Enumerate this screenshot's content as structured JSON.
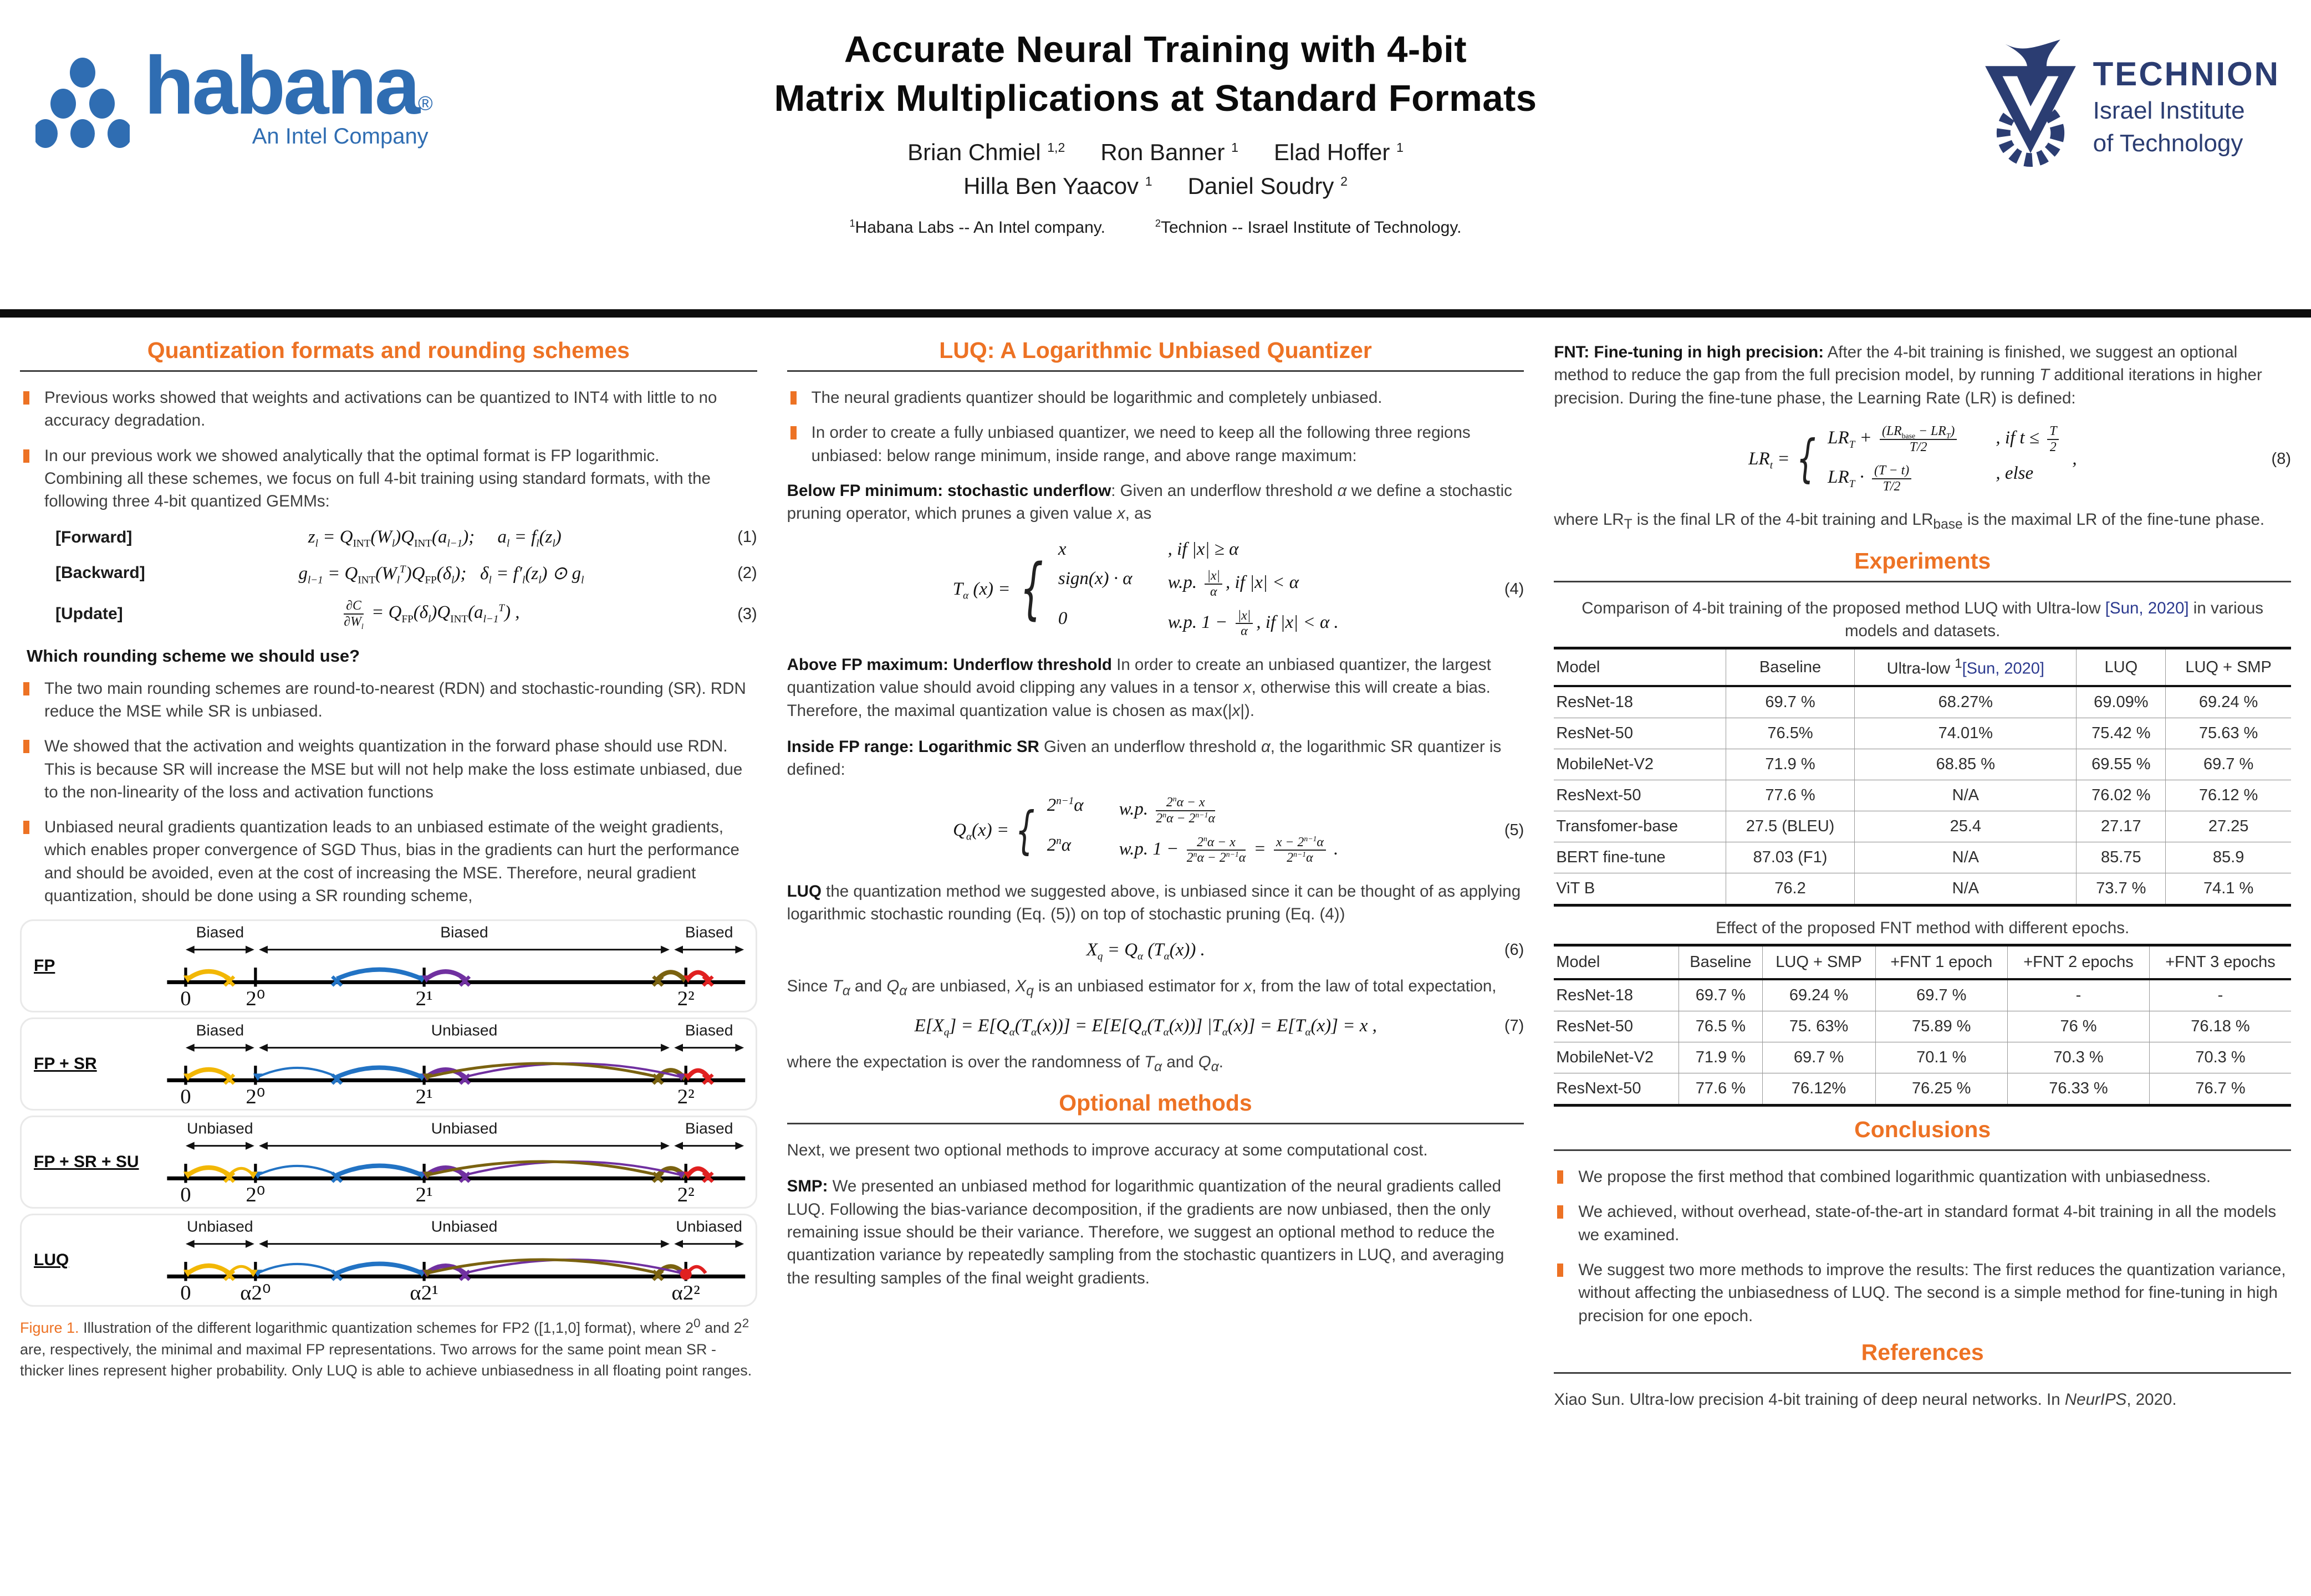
{
  "accent_colors": {
    "orange": "#ED7224",
    "cite_blue": "#2c3a8f",
    "habana_blue": "#2F6DB2",
    "technion_navy": "#2b3d72"
  },
  "header": {
    "title_line1": "Accurate Neural Training with 4-bit",
    "title_line2": "Matrix Multiplications at Standard Formats",
    "authors_line1_html": "Brian Chmiel <sup>1,2</sup><span class=\"gap-mid\"></span>Ron Banner <sup>1</sup><span class=\"gap-mid\"></span>Elad Hoffer <sup>1</sup>",
    "authors_line2_html": "Hilla Ben Yaacov <sup>1</sup><span class=\"gap-mid\"></span>Daniel Soudry <sup>2</sup>",
    "affiliations_html": "<sup>1</sup>Habana Labs -- An Intel company.<span class=\"gap-wide\"></span><sup>2</sup>Technion -- Israel Institute of Technology.",
    "habana_logo": {
      "wordmark": "habana",
      "registered": "®",
      "tagline": "An Intel Company"
    },
    "technion_logo": {
      "name": "TECHNION",
      "line1": "Israel Institute",
      "line2": "of Technology"
    }
  },
  "col1": {
    "heading": "Quantization formats and rounding schemes",
    "bullet1": "Previous works showed that weights and activations can be quantized to INT4 with little to no accuracy degradation.",
    "bullet2a": "In our previous work we showed analytically that the optimal format is FP logarithmic.",
    "bullet2b": "Combining all these schemes, we focus on full 4-bit training using standard formats, with the following three 4-bit quantized GEMMs:",
    "eq1": {
      "tag": "[Forward]",
      "body_html": "z<sub>l</sub> = Q<sub class=\"rm\">INT</sub>(W<sub>l</sub>)Q<sub class=\"rm\">INT</sub>(a<sub>l−1</sub>); &nbsp;&nbsp;&nbsp; a<sub>l</sub> = f<sub>l</sub>(z<sub>l</sub>)",
      "num": "(1)"
    },
    "eq2": {
      "tag": "[Backward]",
      "body_html": "g<sub>l−1</sub> = Q<sub class=\"rm\">INT</sub>(W<sub>l</sub><sup>T</sup>)Q<sub class=\"rm\">FP</sub>(δ<sub>l</sub>); &nbsp; δ<sub>l</sub> = f′<sub>l</sub>(z<sub>l</sub>) ⊙ g<sub>l</sub>",
      "num": "(2)"
    },
    "eq3": {
      "tag": "[Update]",
      "body_html": "<span class=\"fr\"><span>∂C</span><span>∂W<sub>l</sub></span></span> = Q<sub class=\"rm\">FP</sub>(δ<sub>l</sub>)Q<sub class=\"rm\">INT</sub>(a<sub>l−1</sub><sup>T</sup>) ,",
      "num": "(3)"
    },
    "subheading": "Which rounding scheme we should use?",
    "bullet3": "The two main rounding schemes are round-to-nearest (RDN) and stochastic-rounding (SR). RDN reduce the MSE while SR is unbiased.",
    "bullet4": "We showed that the activation and weights quantization in the forward phase should use RDN. This is because SR will increase the MSE but will not help make the loss estimate unbiased, due to the non-linearity of the loss and activation functions",
    "bullet5": "Unbiased neural gradients quantization leads to an unbiased estimate of the weight gradients, which enables proper convergence of SGD Thus, bias in the gradients can hurt the performance and should be avoided, even at the cost of increasing the MSE. Therefore, neural gradient quantization, should be done using a SR rounding scheme,"
  },
  "figure1": {
    "panels": [
      {
        "label": "FP",
        "style": "fp",
        "regions": [
          "Biased",
          "Biased",
          "Biased"
        ],
        "ticks": [
          "0",
          "2⁰",
          "2¹",
          "2²"
        ]
      },
      {
        "label": "FP + SR",
        "style": "sr",
        "regions": [
          "Biased",
          "Unbiased",
          "Biased"
        ],
        "ticks": [
          "0",
          "2⁰",
          "2¹",
          "2²"
        ]
      },
      {
        "label": "FP + SR + SU",
        "style": "srsu",
        "regions": [
          "Unbiased",
          "Unbiased",
          "Biased"
        ],
        "ticks": [
          "0",
          "2⁰",
          "2¹",
          "2²"
        ]
      },
      {
        "label": "LUQ",
        "style": "luq",
        "regions": [
          "Unbiased",
          "Unbiased",
          "Unbiased"
        ],
        "ticks": [
          "0",
          "α2⁰",
          "α2¹",
          "α2²"
        ]
      }
    ],
    "caption_html": "<span class=\"figtag\">Figure 1.</span> Illustration of the different logarithmic quantization schemes for FP2 ([1,1,0] format), where 2<sup>0</sup> and 2<sup>2</sup> are, respectively, the minimal and maximal FP representations. Two arrows for the same point mean SR - thicker lines represent higher probability. Only LUQ is able to achieve unbiasedness in all floating point ranges."
  },
  "col2": {
    "heading": "LUQ: A Logarithmic Unbiased Quantizer",
    "bullet1": "The neural gradients quantizer should be logarithmic and completely unbiased.",
    "bullet2": "In order to create a fully unbiased quantizer, we need to keep all the following three regions unbiased: below range minimum, inside range, and above range maximum:",
    "p_below_html": "<b>Below FP minimum: stochastic underflow</b>:  Given an underflow threshold <i>α</i> we define a stochastic pruning operator, which prunes a given value <i>x</i>, as",
    "eq4": {
      "lhs_html": "T<sub>α</sub> (x) =",
      "rows": [
        [
          "x",
          ", if |x| ≥ α"
        ],
        [
          "sign(x) · α",
          "w.p. <span class=\"fr\"><span>|x|</span><span>α</span></span>, if |x| &lt; α"
        ],
        [
          "0",
          "w.p. 1 − <span class=\"fr\"><span>|x|</span><span>α</span></span>, if |x| &lt; α ."
        ]
      ],
      "num": "(4)"
    },
    "p_above_html": "<b>Above FP maximum: Underflow threshold</b> In order to create an unbiased quantizer, the largest quantization value should avoid clipping any values in a tensor <i>x</i>, otherwise this will create a bias. Therefore, the maximal quantization value is chosen as max(|<i>x</i>|).",
    "p_inside_html": "<b>Inside FP range: Logarithmic SR</b> Given an underflow threshold <i>α</i>, the logarithmic SR quantizer is defined:",
    "eq5": {
      "lhs_html": "Q<sub>α</sub>(x) =",
      "rows": [
        [
          "2<sup>n−1</sup>α",
          "w.p. <span class=\"fr\"><span>2<sup>n</sup>α − x</span><span>2<sup>n</sup>α − 2<sup>n−1</sup>α</span></span>"
        ],
        [
          "2<sup>n</sup>α",
          "w.p. 1 − <span class=\"fr\"><span>2<sup>n</sup>α − x</span><span>2<sup>n</sup>α − 2<sup>n−1</sup>α</span></span> = <span class=\"fr\"><span>x − 2<sup>n−1</sup>α</span><span>2<sup>n−1</sup>α</span></span> ."
        ]
      ],
      "num": "(5)"
    },
    "p_luq_html": "<b>LUQ</b> the quantization method we suggested above, is unbiased since it can be thought of as applying logarithmic stochastic rounding (Eq. (5)) on top of stochastic pruning (Eq. (4))",
    "eq6": {
      "body_html": "X<sub>q</sub> = Q<sub>α</sub> (T<sub>α</sub>(x)) .",
      "num": "(6)"
    },
    "p_since_html": "Since <i>T<sub>α</sub></i> and <i>Q<sub>α</sub></i> are unbiased, <i>X<sub>q</sub></i> is an unbiased estimator for <i>x</i>, from the law of total expectation,",
    "eq7": {
      "body_html": "E[X<sub>q</sub>] = E[Q<sub>α</sub>(T<sub>α</sub>(x))] = E[E[Q<sub>α</sub>(T<sub>α</sub>(x))] |T<sub>α</sub>(x)] = E[T<sub>α</sub>(x)] = x ,",
      "num": "(7)"
    },
    "p_where_html": "where the expectation is over the randomness of <i>T<sub>α</sub></i> and <i>Q<sub>α</sub></i>.",
    "heading2": "Optional methods",
    "p_next": "Next, we present two optional methods to improve accuracy at some computational cost.",
    "p_smp_html": "<b>SMP:</b> We presented an unbiased method for logarithmic quantization of the neural gradients called LUQ. Following the bias-variance decomposition, if the gradients are now unbiased, then the only remaining issue should be their variance. Therefore, we suggest an optional method to reduce the quantization variance by repeatedly sampling from the stochastic quantizers in LUQ, and averaging the resulting samples of the final weight gradients."
  },
  "col3": {
    "p_fnt_html": "<b>FNT: Fine-tuning in high precision:</b> After the 4-bit training is finished, we suggest an optional method to reduce the gap from the full precision model, by running <i>T</i> additional iterations in higher precision. During the fine-tune phase, the Learning Rate (LR) is defined:",
    "eq8": {
      "lhs_html": "LR<sub>t</sub> =",
      "rows": [
        [
          "LR<sub>T</sub> + <span class=\"fr\"><span>(LR<sub class=\"rm\">base</sub> − LR<sub>T</sub>)</span><span>T/2</span></span>",
          ", if t ≤ <span class=\"fr\"><span>T</span><span>2</span></span>"
        ],
        [
          "LR<sub>T</sub> · <span class=\"fr\"><span>(T − t)</span><span>T/2</span></span>",
          ", else"
        ]
      ],
      "tail": ",",
      "num": "(8)"
    },
    "p_wherelr_html": "where LR<sub>T</sub> is the final LR of the 4-bit training and LR<sub class=\"rm\">base</sub> is the maximal LR of the fine-tune phase.",
    "exp_heading": "Experiments",
    "table1_caption_html": "Comparison of 4-bit training of the proposed method LUQ with Ultra-low <span class=\"cite\" data-name=\"citation-link\" data-interactable=\"true\">[Sun, 2020]</span> in various models and datasets.",
    "table1": {
      "columns_html": [
        "Model",
        "Baseline",
        "Ultra-low <sup>1</sup><span class=\"cite\" data-name=\"citation-link\" data-interactable=\"true\">[Sun, 2020]</span>",
        "LUQ",
        "LUQ + SMP"
      ],
      "rows": [
        [
          "ResNet-18",
          "69.7 %",
          "68.27%",
          "69.09%",
          "69.24 %"
        ],
        [
          "ResNet-50",
          "76.5%",
          "74.01%",
          "75.42 %",
          "75.63 %"
        ],
        [
          "MobileNet-V2",
          "71.9 %",
          "68.85 %",
          "69.55 %",
          "69.7 %"
        ],
        [
          "ResNext-50",
          "77.6 %",
          "N/A",
          "76.02 %",
          "76.12 %"
        ],
        [
          "Transfomer-base",
          "27.5 (BLEU)",
          "25.4",
          "27.17",
          "27.25"
        ],
        [
          "BERT fine-tune",
          "87.03 (F1)",
          "N/A",
          "85.75",
          "85.9"
        ],
        [
          "ViT B",
          "76.2",
          "N/A",
          "73.7 %",
          "74.1 %"
        ]
      ]
    },
    "table2_caption": "Effect of the proposed FNT method with different epochs.",
    "table2": {
      "columns_html": [
        "Model",
        "Baseline",
        "LUQ + SMP",
        "+FNT 1 epoch",
        "+FNT 2 epochs",
        "+FNT 3 epochs"
      ],
      "rows": [
        [
          "ResNet-18",
          "69.7 %",
          "69.24 %",
          "69.7 %",
          "-",
          "-"
        ],
        [
          "ResNet-50",
          "76.5 %",
          "75. 63%",
          "75.89 %",
          "76 %",
          "76.18 %"
        ],
        [
          "MobileNet-V2",
          "71.9 %",
          "69.7 %",
          "70.1 %",
          "70.3 %",
          "70.3 %"
        ],
        [
          "ResNext-50",
          "77.6 %",
          "76.12%",
          "76.25 %",
          "76.33 %",
          "76.7 %"
        ]
      ]
    },
    "conc_heading": "Conclusions",
    "conc_bullets": [
      "We propose the first method that combined logarithmic quantization with unbiasedness.",
      "We achieved, without overhead, state-of-the-art in standard format 4-bit training in all the models we examined.",
      "We suggest two more methods to improve the results: The first reduces the quantization variance, without affecting the unbiasedness of LUQ. The second is a simple method for fine-tuning in high precision for one epoch."
    ],
    "ref_heading": "References",
    "reference_html": "Xiao Sun.  Ultra-low precision 4-bit training of deep neural networks.  In <i>NeurIPS</i>, 2020."
  }
}
